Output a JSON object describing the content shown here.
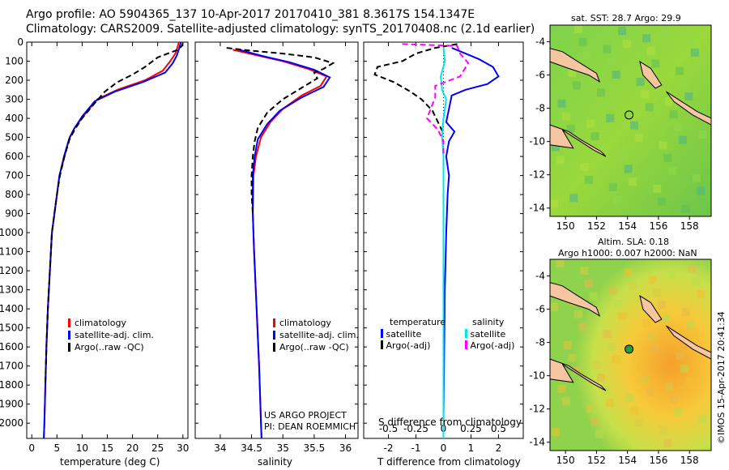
{
  "header": {
    "line1": "Argo profile: AO 5904365_137 10-Apr-2017 20170410_381 8.3617S 154.1347E",
    "line2": "Climatology: CARS2009. Satellite-adjusted climatology: synTS_20170408.nc (2.1d earlier)"
  },
  "colors": {
    "climatology": "#ff0000",
    "satellite": "#0000ff",
    "argo": "#000000",
    "salinity_sat": "#00e5e5",
    "salinity_argo": "#ff00ff",
    "land": "#f5c6a0"
  },
  "chart_data": [
    {
      "type": "line",
      "xlabel": "temperature (deg C)",
      "ylabel": "",
      "xlim": [
        -1,
        31
      ],
      "ylim": [
        2080,
        0
      ],
      "xticks": [
        "0",
        "5",
        "10",
        "15",
        "20",
        "25",
        "30"
      ],
      "yticks": [
        "0",
        "100",
        "200",
        "300",
        "400",
        "500",
        "600",
        "700",
        "800",
        "900",
        "1000",
        "1100",
        "1200",
        "1300",
        "1400",
        "1500",
        "1600",
        "1700",
        "1800",
        "1900",
        "2000"
      ],
      "legend": [
        "climatology",
        "satellite-adj. clim.",
        "Argo(..raw -QC)"
      ],
      "legend_placement": "lower-middle",
      "series": [
        {
          "name": "climatology",
          "style": "solid",
          "color": "#ff0000",
          "points": [
            [
              29.2,
              0
            ],
            [
              29.0,
              20
            ],
            [
              28.5,
              60
            ],
            [
              27.5,
              100
            ],
            [
              26.0,
              150
            ],
            [
              22.5,
              200
            ],
            [
              17.0,
              250
            ],
            [
              13.0,
              300
            ],
            [
              10.5,
              380
            ],
            [
              8.5,
              450
            ],
            [
              7.5,
              500
            ],
            [
              6.5,
              600
            ],
            [
              5.5,
              700
            ],
            [
              5.0,
              800
            ],
            [
              4.5,
              900
            ],
            [
              4.0,
              1000
            ],
            [
              3.6,
              1200
            ],
            [
              3.2,
              1400
            ],
            [
              2.9,
              1600
            ],
            [
              2.7,
              1800
            ],
            [
              2.5,
              2000
            ],
            [
              2.4,
              2080
            ]
          ]
        },
        {
          "name": "satellite-adj. clim.",
          "style": "solid",
          "color": "#0000ff",
          "points": [
            [
              29.6,
              0
            ],
            [
              29.3,
              30
            ],
            [
              28.8,
              70
            ],
            [
              28.0,
              110
            ],
            [
              26.5,
              160
            ],
            [
              22.0,
              210
            ],
            [
              16.5,
              260
            ],
            [
              12.5,
              310
            ],
            [
              10.0,
              390
            ],
            [
              8.4,
              455
            ],
            [
              7.4,
              510
            ],
            [
              6.4,
              600
            ],
            [
              5.5,
              700
            ],
            [
              5.0,
              800
            ],
            [
              4.5,
              900
            ],
            [
              4.0,
              1000
            ],
            [
              3.6,
              1200
            ],
            [
              3.2,
              1400
            ],
            [
              2.9,
              1600
            ],
            [
              2.7,
              1800
            ],
            [
              2.5,
              2000
            ],
            [
              2.4,
              2080
            ]
          ]
        },
        {
          "name": "Argo(..raw -QC)",
          "style": "dashed",
          "color": "#000000",
          "points": [
            [
              30.0,
              5
            ],
            [
              29.8,
              20
            ],
            [
              29.0,
              40
            ],
            [
              27.0,
              60
            ],
            [
              25.0,
              80
            ],
            [
              24.0,
              100
            ],
            [
              22.5,
              130
            ],
            [
              20.0,
              170
            ],
            [
              17.0,
              210
            ],
            [
              14.5,
              260
            ],
            [
              12.5,
              320
            ],
            [
              10.0,
              400
            ],
            [
              8.5,
              460
            ],
            [
              7.5,
              510
            ],
            [
              6.5,
              600
            ],
            [
              5.6,
              700
            ],
            [
              5.0,
              800
            ],
            [
              4.5,
              900
            ],
            [
              4.0,
              1000
            ],
            [
              3.6,
              1200
            ],
            [
              3.2,
              1400
            ],
            [
              2.9,
              1600
            ],
            [
              2.7,
              1800
            ]
          ]
        }
      ]
    },
    {
      "type": "line",
      "xlabel": "salinity",
      "ylabel": "",
      "xlim": [
        33.6,
        36.2
      ],
      "ylim": [
        2080,
        0
      ],
      "xticks": [
        "34",
        "34.5",
        "35",
        "35.5",
        "36"
      ],
      "legend": [
        "climatology",
        "satellite-adj. clim.",
        "Argo(..raw -QC)"
      ],
      "legend_placement": "lower-right",
      "annotation": [
        "US ARGO PROJECT",
        "PI: DEAN ROEMMICH"
      ],
      "series": [
        {
          "name": "climatology",
          "style": "solid",
          "color": "#ff0000",
          "points": [
            [
              34.2,
              40
            ],
            [
              34.6,
              70
            ],
            [
              35.0,
              100
            ],
            [
              35.4,
              140
            ],
            [
              35.7,
              180
            ],
            [
              35.6,
              230
            ],
            [
              35.3,
              280
            ],
            [
              35.0,
              350
            ],
            [
              34.8,
              420
            ],
            [
              34.65,
              500
            ],
            [
              34.57,
              600
            ],
            [
              34.53,
              700
            ],
            [
              34.52,
              900
            ],
            [
              34.54,
              1100
            ],
            [
              34.58,
              1400
            ],
            [
              34.62,
              1700
            ],
            [
              34.65,
              2000
            ],
            [
              34.66,
              2080
            ]
          ]
        },
        {
          "name": "satellite-adj. clim.",
          "style": "solid",
          "color": "#0000ff",
          "points": [
            [
              34.3,
              40
            ],
            [
              34.7,
              75
            ],
            [
              35.1,
              105
            ],
            [
              35.5,
              145
            ],
            [
              35.75,
              185
            ],
            [
              35.65,
              235
            ],
            [
              35.3,
              290
            ],
            [
              34.95,
              360
            ],
            [
              34.75,
              430
            ],
            [
              34.6,
              510
            ],
            [
              34.55,
              600
            ],
            [
              34.52,
              700
            ],
            [
              34.52,
              900
            ],
            [
              34.54,
              1100
            ],
            [
              34.58,
              1400
            ],
            [
              34.62,
              1700
            ],
            [
              34.65,
              2000
            ],
            [
              34.66,
              2080
            ]
          ]
        },
        {
          "name": "Argo(..raw -QC)",
          "style": "dashed",
          "color": "#000000",
          "points": [
            [
              34.1,
              30
            ],
            [
              34.5,
              45
            ],
            [
              35.0,
              60
            ],
            [
              35.5,
              80
            ],
            [
              35.8,
              110
            ],
            [
              35.65,
              140
            ],
            [
              35.5,
              160
            ],
            [
              35.55,
              190
            ],
            [
              35.3,
              240
            ],
            [
              35.0,
              300
            ],
            [
              34.75,
              370
            ],
            [
              34.6,
              450
            ],
            [
              34.55,
              520
            ],
            [
              34.52,
              600
            ],
            [
              34.5,
              700
            ],
            [
              34.5,
              800
            ],
            [
              34.52,
              900
            ]
          ]
        }
      ]
    },
    {
      "type": "line",
      "xlabel": "T difference from climatology",
      "toplabel": "S difference from climatology",
      "xlim": [
        -2.9,
        2.9
      ],
      "ylim": [
        2080,
        0
      ],
      "xticks": [
        "-2",
        "-1",
        "0",
        "1",
        "2"
      ],
      "xticks_top": [
        "-0.5",
        "-0.25",
        "0",
        "0.25",
        "0.5"
      ],
      "legend_title_left": "temperature",
      "legend_title_right": "salinity",
      "legend": [
        "satellite",
        "Argo(-adj)",
        "satellite",
        "Argo(-adj)"
      ],
      "legend_placement": "lower",
      "series": [
        {
          "name": "satellite",
          "kind": "temperature",
          "style": "solid",
          "color": "#0000ff",
          "points": [
            [
              0.3,
              30
            ],
            [
              0.8,
              60
            ],
            [
              1.3,
              90
            ],
            [
              1.8,
              130
            ],
            [
              2.0,
              180
            ],
            [
              1.6,
              220
            ],
            [
              0.8,
              250
            ],
            [
              0.3,
              280
            ],
            [
              0.2,
              350
            ],
            [
              0.1,
              420
            ],
            [
              0.4,
              470
            ],
            [
              0.2,
              520
            ],
            [
              0.1,
              600
            ],
            [
              0.2,
              700
            ],
            [
              0.15,
              800
            ],
            [
              0.1,
              1000
            ],
            [
              0.05,
              1300
            ],
            [
              0.02,
              1700
            ],
            [
              0.0,
              2000
            ],
            [
              0.0,
              2080
            ]
          ]
        },
        {
          "name": "Argo(-adj)",
          "kind": "temperature",
          "style": "dashed",
          "color": "#000000",
          "points": [
            [
              0.5,
              10
            ],
            [
              -0.3,
              30
            ],
            [
              -1.0,
              60
            ],
            [
              -1.5,
              100
            ],
            [
              -2.4,
              130
            ],
            [
              -2.5,
              170
            ],
            [
              -1.8,
              210
            ],
            [
              -1.2,
              260
            ],
            [
              -0.8,
              300
            ],
            [
              -0.4,
              360
            ],
            [
              -0.2,
              420
            ],
            [
              0.0,
              480
            ]
          ]
        },
        {
          "name": "satellite",
          "kind": "salinity",
          "style": "solid",
          "color": "#00e5e5",
          "points": [
            [
              0.0,
              30
            ],
            [
              0.05,
              100
            ],
            [
              -0.1,
              180
            ],
            [
              -0.05,
              250
            ],
            [
              0.1,
              300
            ],
            [
              0.0,
              400
            ],
            [
              -0.05,
              500
            ],
            [
              0.0,
              600
            ],
            [
              0.0,
              800
            ],
            [
              0.0,
              1200
            ],
            [
              0.0,
              1600
            ],
            [
              0.0,
              2000
            ],
            [
              0.0,
              2080
            ]
          ]
        },
        {
          "name": "Argo(-adj)",
          "kind": "salinity",
          "style": "dashed",
          "color": "#ff00ff",
          "points": [
            [
              -1.5,
              10
            ],
            [
              0.5,
              20
            ],
            [
              0.6,
              60
            ],
            [
              0.9,
              110
            ],
            [
              0.6,
              180
            ],
            [
              -0.3,
              230
            ],
            [
              -0.3,
              290
            ],
            [
              -0.6,
              400
            ],
            [
              -0.2,
              460
            ],
            [
              0.0,
              520
            ],
            [
              0.0,
              600
            ]
          ]
        }
      ]
    }
  ],
  "maps": [
    {
      "title": "sat. SST: 28.7 Argo: 29.9",
      "xticks": [
        "150",
        "152",
        "154",
        "156",
        "158"
      ],
      "yticks": [
        "-4",
        "-6",
        "-8",
        "-10",
        "-12",
        "-14"
      ],
      "marker": {
        "lon": 154.1,
        "lat": -8.4
      }
    },
    {
      "title": "Altim. SLA: 0.18",
      "subtitle": "Argo h1000: 0.007 h2000: NaN",
      "xticks": [
        "150",
        "152",
        "154",
        "156",
        "158"
      ],
      "yticks": [
        "-4",
        "-6",
        "-8",
        "-10",
        "-12",
        "-14"
      ],
      "marker": {
        "lon": 154.1,
        "lat": -8.4
      }
    }
  ],
  "credit": "©IMOS 15-Apr-2017 20:41:34"
}
